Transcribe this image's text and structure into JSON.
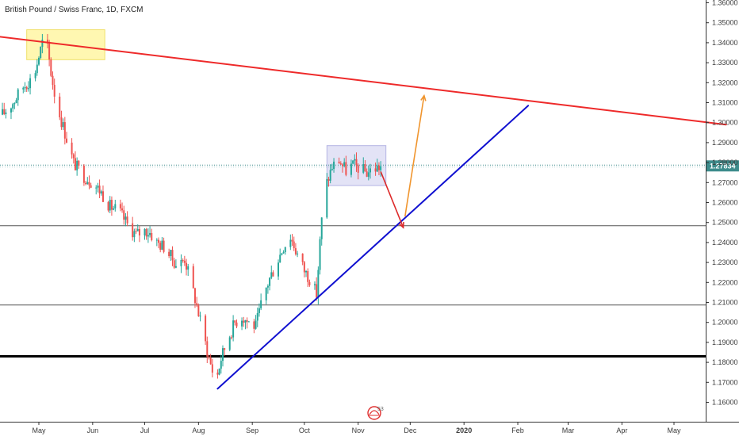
{
  "header": {
    "title": "British Pound / Swiss Franc, 1D, FXCM"
  },
  "watermark": {
    "icon": "tradingview-logo-icon",
    "text": "53",
    "color": "#e03030"
  },
  "chart_data": {
    "type": "candlestick",
    "title": "British Pound / Swiss Franc, 1D, FXCM",
    "xlabel": "",
    "ylabel": "",
    "ylim": [
      1.155,
      1.365
    ],
    "y_ticks": [
      "1.16000",
      "1.17000",
      "1.18000",
      "1.19000",
      "1.20000",
      "1.21000",
      "1.22000",
      "1.23000",
      "1.24000",
      "1.25000",
      "1.26000",
      "1.27000",
      "1.28000",
      "1.29000",
      "1.30000",
      "1.31000",
      "1.32000",
      "1.33000",
      "1.34000",
      "1.35000",
      "1.36000"
    ],
    "x_ticks": [
      {
        "label": "May",
        "date": "2019-05-01"
      },
      {
        "label": "Jun",
        "date": "2019-06-01"
      },
      {
        "label": "Jul",
        "date": "2019-07-01"
      },
      {
        "label": "Aug",
        "date": "2019-08-01"
      },
      {
        "label": "Sep",
        "date": "2019-09-01"
      },
      {
        "label": "Oct",
        "date": "2019-10-01"
      },
      {
        "label": "Nov",
        "date": "2019-11-01"
      },
      {
        "label": "Dec",
        "date": "2019-12-01"
      },
      {
        "label": "2020",
        "date": "2020-01-01",
        "bold": true
      },
      {
        "label": "Feb",
        "date": "2020-02-01"
      },
      {
        "label": "Mar",
        "date": "2020-03-01"
      },
      {
        "label": "Apr",
        "date": "2020-04-01"
      },
      {
        "label": "May",
        "date": "2020-05-01"
      }
    ],
    "last_price": {
      "label": "1.27834",
      "value": 1.27834,
      "color": "#3d8c8c"
    },
    "colors": {
      "up": "#26a69a",
      "down": "#ef5350"
    },
    "series_close": [
      [
        "2019-04-10",
        1.304
      ],
      [
        "2019-04-16",
        1.31
      ],
      [
        "2019-04-22",
        1.318
      ],
      [
        "2019-04-28",
        1.323
      ],
      [
        "2019-05-03",
        1.34
      ],
      [
        "2019-05-06",
        1.337
      ],
      [
        "2019-05-08",
        1.325
      ],
      [
        "2019-05-11",
        1.31
      ],
      [
        "2019-05-16",
        1.295
      ],
      [
        "2019-05-21",
        1.28
      ],
      [
        "2019-05-26",
        1.274
      ],
      [
        "2019-06-01",
        1.27
      ],
      [
        "2019-06-06",
        1.265
      ],
      [
        "2019-06-11",
        1.258
      ],
      [
        "2019-06-16",
        1.256
      ],
      [
        "2019-06-21",
        1.249
      ],
      [
        "2019-06-26",
        1.244
      ],
      [
        "2019-07-01",
        1.246
      ],
      [
        "2019-07-04",
        1.245
      ],
      [
        "2019-07-08",
        1.24
      ],
      [
        "2019-07-12",
        1.238
      ],
      [
        "2019-07-16",
        1.233
      ],
      [
        "2019-07-20",
        1.228
      ],
      [
        "2019-07-24",
        1.232
      ],
      [
        "2019-07-27",
        1.222
      ],
      [
        "2019-07-30",
        1.212
      ],
      [
        "2019-08-03",
        1.197
      ],
      [
        "2019-08-07",
        1.182
      ],
      [
        "2019-08-11",
        1.17
      ],
      [
        "2019-08-14",
        1.182
      ],
      [
        "2019-08-18",
        1.192
      ],
      [
        "2019-08-22",
        1.2
      ],
      [
        "2019-08-26",
        1.203
      ],
      [
        "2019-08-30",
        1.2
      ],
      [
        "2019-09-03",
        1.198
      ],
      [
        "2019-09-07",
        1.212
      ],
      [
        "2019-09-11",
        1.222
      ],
      [
        "2019-09-15",
        1.23
      ],
      [
        "2019-09-19",
        1.238
      ],
      [
        "2019-09-23",
        1.243
      ],
      [
        "2019-09-27",
        1.234
      ],
      [
        "2019-10-01",
        1.226
      ],
      [
        "2019-10-04",
        1.222
      ],
      [
        "2019-10-08",
        1.214
      ],
      [
        "2019-10-10",
        1.24
      ],
      [
        "2019-10-12",
        1.262
      ],
      [
        "2019-10-14",
        1.27
      ],
      [
        "2019-10-17",
        1.278
      ],
      [
        "2019-10-21",
        1.281
      ],
      [
        "2019-10-25",
        1.276
      ],
      [
        "2019-10-29",
        1.279
      ],
      [
        "2019-11-02",
        1.277
      ],
      [
        "2019-11-06",
        1.275
      ],
      [
        "2019-11-10",
        1.277
      ],
      [
        "2019-11-14",
        1.278
      ]
    ],
    "annotations": {
      "horizontal_levels": [
        {
          "name": "level-1-25",
          "value": 1.2484,
          "color": "#555555",
          "width": 1
        },
        {
          "name": "level-1-21",
          "value": 1.2087,
          "color": "#555555",
          "width": 1
        },
        {
          "name": "level-1-18",
          "value": 1.183,
          "color": "#000000",
          "width": 3
        }
      ],
      "trendlines": [
        {
          "name": "descending-resistance-line",
          "start": [
            "2019-03-25",
            1.3445
          ],
          "end": [
            "2020-05-31",
            1.299
          ],
          "color": "#ee2a2a",
          "width": 2
        },
        {
          "name": "ascending-support-line",
          "start": [
            "2019-08-12",
            1.1668
          ],
          "end": [
            "2020-02-07",
            1.3085
          ],
          "color": "#1010d0",
          "width": 2
        }
      ],
      "rectangles": [
        {
          "name": "highlight-box-may-top",
          "from": [
            "2019-04-24",
            1.3465
          ],
          "to": [
            "2019-06-08",
            1.3315
          ],
          "fill": "#fff59d",
          "stroke": "#f0e068"
        },
        {
          "name": "highlight-box-consolidation",
          "from": [
            "2019-10-14",
            1.2885
          ],
          "to": [
            "2019-11-17",
            1.2685
          ],
          "fill": "#dcdcf4",
          "stroke": "#b4b4e4"
        }
      ],
      "arrows": [
        {
          "name": "projection-arrow-down",
          "start": [
            "2019-11-14",
            1.2755
          ],
          "end": [
            "2019-11-27",
            1.2475
          ],
          "color": "#dd2a2a"
        },
        {
          "name": "projection-arrow-up",
          "start": [
            "2019-11-28",
            1.253
          ],
          "end": [
            "2019-12-09",
            1.3135
          ],
          "color": "#f0952e"
        }
      ]
    }
  }
}
